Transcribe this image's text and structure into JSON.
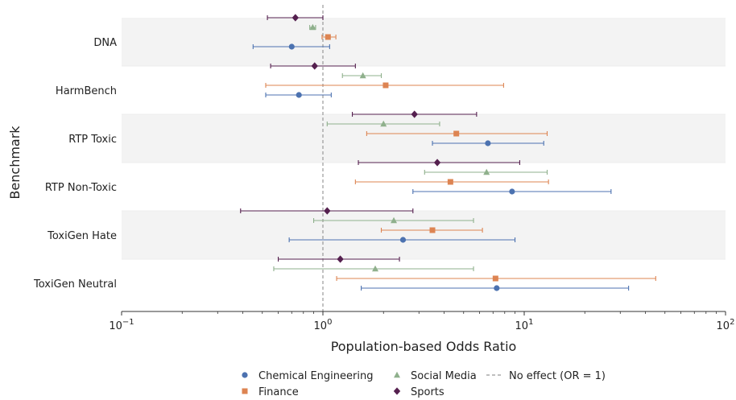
{
  "chart_data": {
    "type": "scatter",
    "xlabel": "Population-based Odds Ratio",
    "ylabel": "Benchmark",
    "xscale": "log",
    "xlim": [
      0.1,
      100
    ],
    "x_ticks": [
      {
        "value": 0.1,
        "base": "10",
        "exp": "−1"
      },
      {
        "value": 1,
        "base": "10",
        "exp": "0"
      },
      {
        "value": 10,
        "base": "10",
        "exp": "1"
      },
      {
        "value": 100,
        "base": "10",
        "exp": "2"
      }
    ],
    "reference_line": {
      "value": 1,
      "label": "No effect (OR = 1)",
      "color": "#999999"
    },
    "band_color": "#f3f3f3",
    "categories": [
      "DNA",
      "HarmBench",
      "RTP Toxic",
      "RTP Non-Toxic",
      "ToxiGen Hate",
      "ToxiGen Neutral"
    ],
    "series": [
      {
        "name": "Chemical Engineering",
        "color": "#4c72b0",
        "marker": "circle",
        "points": [
          {
            "est": 0.7,
            "lo": 0.45,
            "hi": 1.08
          },
          {
            "est": 0.76,
            "lo": 0.52,
            "hi": 1.1
          },
          {
            "est": 6.6,
            "lo": 3.5,
            "hi": 12.5
          },
          {
            "est": 8.7,
            "lo": 2.8,
            "hi": 27.0
          },
          {
            "est": 2.5,
            "lo": 0.68,
            "hi": 9.0
          },
          {
            "est": 7.3,
            "lo": 1.55,
            "hi": 33.0
          }
        ]
      },
      {
        "name": "Finance",
        "color": "#dd8452",
        "marker": "square",
        "points": [
          {
            "est": 1.06,
            "lo": 0.99,
            "hi": 1.16
          },
          {
            "est": 2.05,
            "lo": 0.52,
            "hi": 7.9
          },
          {
            "est": 4.6,
            "lo": 1.65,
            "hi": 13.0
          },
          {
            "est": 4.3,
            "lo": 1.45,
            "hi": 13.2
          },
          {
            "est": 3.5,
            "lo": 1.95,
            "hi": 6.2
          },
          {
            "est": 7.2,
            "lo": 1.17,
            "hi": 45.0
          }
        ]
      },
      {
        "name": "Social Media",
        "color": "#8fb08c",
        "marker": "triangle",
        "points": [
          {
            "est": 0.89,
            "lo": 0.86,
            "hi": 0.92
          },
          {
            "est": 1.58,
            "lo": 1.25,
            "hi": 1.95
          },
          {
            "est": 2.0,
            "lo": 1.05,
            "hi": 3.8
          },
          {
            "est": 6.5,
            "lo": 3.2,
            "hi": 13.0
          },
          {
            "est": 2.25,
            "lo": 0.9,
            "hi": 5.6
          },
          {
            "est": 1.82,
            "lo": 0.57,
            "hi": 5.6
          }
        ]
      },
      {
        "name": "Sports",
        "color": "#55204f",
        "marker": "diamond",
        "points": [
          {
            "est": 0.73,
            "lo": 0.53,
            "hi": 1.0
          },
          {
            "est": 0.91,
            "lo": 0.55,
            "hi": 1.45
          },
          {
            "est": 2.85,
            "lo": 1.4,
            "hi": 5.8
          },
          {
            "est": 3.7,
            "lo": 1.5,
            "hi": 9.5
          },
          {
            "est": 1.05,
            "lo": 0.39,
            "hi": 2.8
          },
          {
            "est": 1.22,
            "lo": 0.6,
            "hi": 2.4
          }
        ]
      }
    ],
    "legend": {
      "placement": "bottom-center",
      "columns": [
        [
          "Chemical Engineering",
          "Finance"
        ],
        [
          "Social Media",
          "Sports"
        ],
        [
          "No effect (OR = 1)"
        ]
      ]
    }
  }
}
